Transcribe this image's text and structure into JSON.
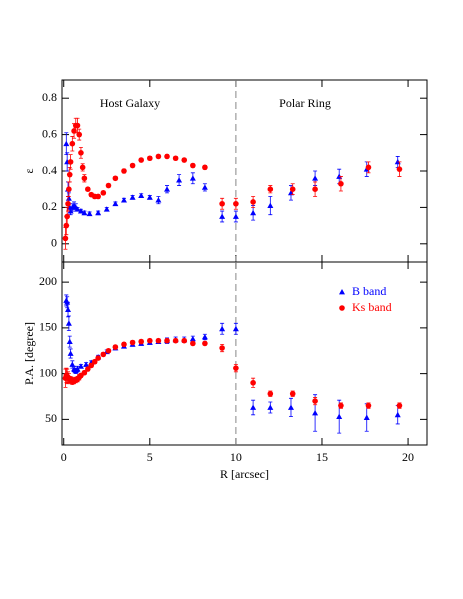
{
  "chart_data": [
    {
      "type": "scatter",
      "ylabel": "ε",
      "annotations": [
        "Host Galaxy",
        "Polar Ring"
      ],
      "xlim": [
        -0.1,
        21.1
      ],
      "xticks": [
        0,
        5,
        10,
        15,
        20
      ],
      "show_xtick_labels": false,
      "ylim": [
        -0.1,
        0.9
      ],
      "yticks": [
        0,
        0.2,
        0.4,
        0.6,
        0.8
      ],
      "vline": 10,
      "series": [
        {
          "color": "#0000ff",
          "marker": "triangle",
          "x": [
            0.15,
            0.2,
            0.25,
            0.3,
            0.35,
            0.4,
            0.5,
            0.6,
            0.7,
            0.8,
            1.0,
            1.2,
            1.5,
            2.0,
            2.5,
            3.0,
            3.5,
            4.0,
            4.5,
            5.0,
            5.5,
            6.0,
            6.7,
            7.5,
            8.2,
            9.2,
            10.0,
            11.0,
            12.0,
            13.2,
            14.6,
            16.0,
            17.6,
            19.4
          ],
          "values": [
            0.55,
            0.45,
            0.3,
            0.25,
            0.2,
            0.18,
            0.2,
            0.21,
            0.2,
            0.19,
            0.18,
            0.17,
            0.165,
            0.17,
            0.19,
            0.22,
            0.24,
            0.255,
            0.265,
            0.255,
            0.24,
            0.3,
            0.35,
            0.36,
            0.31,
            0.15,
            0.15,
            0.17,
            0.21,
            0.28,
            0.36,
            0.37,
            0.41,
            0.45
          ],
          "errors": [
            0.06,
            0.05,
            0.04,
            0.03,
            0.02,
            0.02,
            0.02,
            0.02,
            0.02,
            0.01,
            0.01,
            0.01,
            0.01,
            0.01,
            0.01,
            0.01,
            0.01,
            0.01,
            0.01,
            0.01,
            0.02,
            0.02,
            0.03,
            0.03,
            0.02,
            0.03,
            0.03,
            0.04,
            0.05,
            0.04,
            0.04,
            0.04,
            0.04,
            0.03
          ]
        },
        {
          "color": "#ff0000",
          "marker": "circle",
          "x": [
            0.1,
            0.15,
            0.2,
            0.25,
            0.3,
            0.35,
            0.4,
            0.5,
            0.6,
            0.7,
            0.8,
            0.9,
            1.0,
            1.1,
            1.2,
            1.4,
            1.6,
            1.8,
            2.0,
            2.3,
            2.6,
            3.0,
            3.5,
            4.0,
            4.5,
            5.0,
            5.5,
            6.0,
            6.5,
            7.0,
            7.5,
            8.2,
            9.2,
            10.0,
            11.0,
            12.0,
            13.3,
            14.6,
            16.1,
            17.7,
            19.5
          ],
          "values": [
            0.03,
            0.1,
            0.15,
            0.22,
            0.3,
            0.38,
            0.45,
            0.55,
            0.62,
            0.65,
            0.65,
            0.6,
            0.5,
            0.42,
            0.36,
            0.3,
            0.27,
            0.26,
            0.26,
            0.28,
            0.32,
            0.36,
            0.4,
            0.43,
            0.46,
            0.47,
            0.48,
            0.48,
            0.47,
            0.46,
            0.43,
            0.42,
            0.22,
            0.22,
            0.23,
            0.3,
            0.3,
            0.3,
            0.33,
            0.42,
            0.41
          ],
          "errors": [
            0.06,
            0.05,
            0.05,
            0.04,
            0.04,
            0.04,
            0.04,
            0.04,
            0.04,
            0.04,
            0.04,
            0.03,
            0.03,
            0.02,
            0.02,
            0.01,
            0.01,
            0.01,
            0.01,
            0.01,
            0.01,
            0.01,
            0.01,
            0.01,
            0.01,
            0.01,
            0.01,
            0.01,
            0.01,
            0.01,
            0.01,
            0.01,
            0.03,
            0.03,
            0.03,
            0.02,
            0.03,
            0.04,
            0.04,
            0.03,
            0.04
          ]
        }
      ]
    },
    {
      "type": "scatter",
      "ylabel": "P.A. [degree]",
      "xlabel": "R [arcsec]",
      "xlim": [
        -0.1,
        21.1
      ],
      "xticks": [
        0,
        5,
        10,
        15,
        20
      ],
      "show_xtick_labels": true,
      "ylim": [
        22,
        222
      ],
      "yticks": [
        50,
        100,
        150,
        200
      ],
      "vline": 10,
      "legend": "upper right",
      "series": [
        {
          "name": "B band",
          "color": "#0000ff",
          "marker": "triangle",
          "x": [
            0.15,
            0.2,
            0.25,
            0.3,
            0.35,
            0.4,
            0.5,
            0.6,
            0.7,
            0.8,
            1.0,
            1.3,
            1.6,
            2.0,
            2.5,
            3.0,
            3.5,
            4.0,
            4.5,
            5.0,
            5.5,
            6.0,
            6.5,
            7.0,
            7.5,
            8.2,
            9.2,
            10.0,
            11.0,
            12.0,
            13.2,
            14.6,
            16.0,
            17.6,
            19.4
          ],
          "values": [
            180,
            178,
            170,
            155,
            135,
            122,
            110,
            105,
            103,
            105,
            108,
            110,
            112,
            118,
            124,
            128,
            130,
            132,
            133,
            134,
            135,
            136,
            137,
            137,
            138,
            140,
            149,
            149,
            63,
            63,
            63,
            57,
            53,
            52,
            55
          ],
          "errors": [
            6,
            6,
            8,
            8,
            6,
            5,
            4,
            3,
            3,
            3,
            2,
            2,
            2,
            2,
            2,
            2,
            2,
            2,
            2,
            2,
            2,
            3,
            3,
            3,
            3,
            3,
            6,
            6,
            8,
            6,
            10,
            20,
            18,
            15,
            10
          ]
        },
        {
          "name": "Ks band",
          "color": "#ff0000",
          "marker": "circle",
          "x": [
            0.1,
            0.15,
            0.2,
            0.25,
            0.3,
            0.4,
            0.5,
            0.6,
            0.7,
            0.8,
            0.9,
            1.0,
            1.2,
            1.4,
            1.6,
            1.8,
            2.0,
            2.3,
            2.6,
            3.0,
            3.5,
            4.0,
            4.5,
            5.0,
            5.5,
            6.0,
            6.5,
            7.0,
            7.5,
            8.2,
            9.2,
            10.0,
            11.0,
            12.0,
            13.3,
            14.6,
            16.1,
            17.7,
            19.5
          ],
          "values": [
            95,
            98,
            97,
            96,
            95,
            93,
            92,
            92,
            93,
            94,
            96,
            98,
            101,
            105,
            109,
            113,
            117,
            121,
            125,
            129,
            132,
            134,
            135,
            136,
            136,
            136,
            136,
            136,
            133,
            133,
            128,
            106,
            90,
            78,
            78,
            70,
            65,
            65,
            65
          ],
          "errors": [
            10,
            8,
            8,
            6,
            5,
            4,
            4,
            3,
            3,
            3,
            3,
            2,
            2,
            2,
            2,
            2,
            2,
            2,
            2,
            2,
            2,
            2,
            2,
            2,
            2,
            2,
            2,
            2,
            2,
            2,
            4,
            4,
            5,
            3,
            3,
            4,
            3,
            3,
            3
          ]
        }
      ]
    }
  ]
}
